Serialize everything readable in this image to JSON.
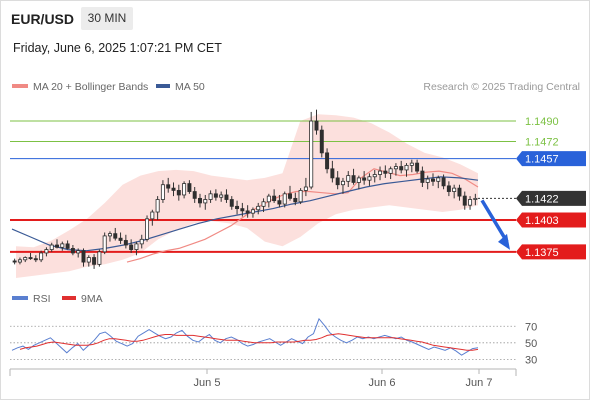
{
  "header": {
    "symbol": "EUR/USD",
    "interval": "30 MIN",
    "timestamp": "Friday, June 6, 2025 1:07:21 PM CET"
  },
  "legend": {
    "ma20": "MA 20 + Bollinger Bands",
    "ma50": "MA 50",
    "ma20_color": "#f08a84",
    "ma50_color": "#3a5a96"
  },
  "credit": "Research © 2025 Trading Central",
  "rsi_legend": {
    "rsi": "RSI",
    "ma9": "9MA",
    "rsi_color": "#5a7fd0",
    "ma9_color": "#e03030"
  },
  "chart_data": {
    "type": "candlestick",
    "instrument": "EUR/USD",
    "timeframe": "30 MIN",
    "x_ticks": [
      "Jun 5",
      "Jun 6",
      "Jun 7"
    ],
    "price_range": [
      1.1352,
      1.1512
    ],
    "candles_ohlc": [
      [
        1.1367,
        1.1369,
        1.1364,
        1.1366
      ],
      [
        1.1366,
        1.137,
        1.1364,
        1.1368
      ],
      [
        1.1368,
        1.1371,
        1.1366,
        1.137
      ],
      [
        1.137,
        1.1374,
        1.1368,
        1.1369
      ],
      [
        1.1369,
        1.1372,
        1.1366,
        1.1368
      ],
      [
        1.1368,
        1.1376,
        1.1366,
        1.1374
      ],
      [
        1.1374,
        1.1379,
        1.1371,
        1.1377
      ],
      [
        1.1377,
        1.1383,
        1.1375,
        1.1381
      ],
      [
        1.1381,
        1.1386,
        1.1378,
        1.1379
      ],
      [
        1.1379,
        1.1384,
        1.1376,
        1.1382
      ],
      [
        1.1382,
        1.1385,
        1.1377,
        1.1378
      ],
      [
        1.1378,
        1.1381,
        1.1372,
        1.1374
      ],
      [
        1.1374,
        1.1378,
        1.137,
        1.1376
      ],
      [
        1.1376,
        1.1378,
        1.1362,
        1.1366
      ],
      [
        1.1366,
        1.1372,
        1.1362,
        1.137
      ],
      [
        1.137,
        1.1373,
        1.136,
        1.1364
      ],
      [
        1.1364,
        1.1377,
        1.1362,
        1.1375
      ],
      [
        1.1375,
        1.1392,
        1.1373,
        1.1389
      ],
      [
        1.1389,
        1.1393,
        1.1384,
        1.1391
      ],
      [
        1.1391,
        1.1396,
        1.1385,
        1.1387
      ],
      [
        1.1387,
        1.1392,
        1.1382,
        1.1385
      ],
      [
        1.1385,
        1.139,
        1.1378,
        1.1381
      ],
      [
        1.1381,
        1.1386,
        1.1374,
        1.1377
      ],
      [
        1.1377,
        1.1384,
        1.1372,
        1.1382
      ],
      [
        1.1382,
        1.139,
        1.1378,
        1.1386
      ],
      [
        1.1386,
        1.1407,
        1.1384,
        1.1404
      ],
      [
        1.1404,
        1.1412,
        1.1398,
        1.141
      ],
      [
        1.141,
        1.1424,
        1.1403,
        1.1421
      ],
      [
        1.1421,
        1.1438,
        1.1418,
        1.1434
      ],
      [
        1.1434,
        1.144,
        1.1427,
        1.1431
      ],
      [
        1.1431,
        1.1436,
        1.1424,
        1.1429
      ],
      [
        1.1429,
        1.1434,
        1.142,
        1.1425
      ],
      [
        1.1425,
        1.1437,
        1.1422,
        1.1435
      ],
      [
        1.1435,
        1.1438,
        1.1426,
        1.1428
      ],
      [
        1.1428,
        1.1432,
        1.1418,
        1.1422
      ],
      [
        1.1422,
        1.1426,
        1.1414,
        1.1418
      ],
      [
        1.1418,
        1.1425,
        1.1412,
        1.1421
      ],
      [
        1.1421,
        1.1429,
        1.1418,
        1.1426
      ],
      [
        1.1426,
        1.143,
        1.142,
        1.1423
      ],
      [
        1.1423,
        1.1428,
        1.1419,
        1.1425
      ],
      [
        1.1425,
        1.143,
        1.1418,
        1.1421
      ],
      [
        1.1421,
        1.1424,
        1.1412,
        1.1415
      ],
      [
        1.1415,
        1.142,
        1.1408,
        1.1413
      ],
      [
        1.1413,
        1.1418,
        1.1406,
        1.1411
      ],
      [
        1.1411,
        1.1416,
        1.1405,
        1.1409
      ],
      [
        1.1409,
        1.1414,
        1.1405,
        1.1412
      ],
      [
        1.1412,
        1.1418,
        1.1408,
        1.1415
      ],
      [
        1.1415,
        1.1422,
        1.141,
        1.1419
      ],
      [
        1.1419,
        1.1426,
        1.1414,
        1.1424
      ],
      [
        1.1424,
        1.143,
        1.1418,
        1.142
      ],
      [
        1.142,
        1.1425,
        1.1414,
        1.1417
      ],
      [
        1.1417,
        1.1428,
        1.1414,
        1.1426
      ],
      [
        1.1426,
        1.1433,
        1.142,
        1.1422
      ],
      [
        1.1422,
        1.1427,
        1.1416,
        1.1419
      ],
      [
        1.1419,
        1.1431,
        1.1417,
        1.1429
      ],
      [
        1.1429,
        1.144,
        1.1424,
        1.1432
      ],
      [
        1.1432,
        1.1498,
        1.143,
        1.149
      ],
      [
        1.149,
        1.15,
        1.1478,
        1.1482
      ],
      [
        1.1482,
        1.1486,
        1.1458,
        1.1462
      ],
      [
        1.1462,
        1.1466,
        1.1444,
        1.1448
      ],
      [
        1.1448,
        1.1455,
        1.1436,
        1.144
      ],
      [
        1.144,
        1.1446,
        1.143,
        1.1434
      ],
      [
        1.1434,
        1.144,
        1.1426,
        1.1437
      ],
      [
        1.1437,
        1.1446,
        1.1432,
        1.1442
      ],
      [
        1.1442,
        1.1448,
        1.1434,
        1.1436
      ],
      [
        1.1436,
        1.1442,
        1.143,
        1.144
      ],
      [
        1.144,
        1.1446,
        1.1434,
        1.1438
      ],
      [
        1.1438,
        1.1444,
        1.1433,
        1.1441
      ],
      [
        1.1441,
        1.1447,
        1.1436,
        1.1443
      ],
      [
        1.1443,
        1.145,
        1.1438,
        1.1446
      ],
      [
        1.1446,
        1.1451,
        1.144,
        1.1444
      ],
      [
        1.1444,
        1.145,
        1.1439,
        1.1448
      ],
      [
        1.1448,
        1.1453,
        1.1442,
        1.145
      ],
      [
        1.145,
        1.1455,
        1.1444,
        1.1447
      ],
      [
        1.1447,
        1.1453,
        1.1441,
        1.1451
      ],
      [
        1.1451,
        1.1456,
        1.1445,
        1.1453
      ],
      [
        1.1453,
        1.1456,
        1.1444,
        1.1446
      ],
      [
        1.1446,
        1.145,
        1.1432,
        1.1436
      ],
      [
        1.1436,
        1.1442,
        1.143,
        1.1439
      ],
      [
        1.1439,
        1.1444,
        1.1433,
        1.1437
      ],
      [
        1.1437,
        1.1442,
        1.1431,
        1.144
      ],
      [
        1.144,
        1.1443,
        1.143,
        1.1433
      ],
      [
        1.1433,
        1.1437,
        1.1424,
        1.1428
      ],
      [
        1.1428,
        1.1434,
        1.1422,
        1.1431
      ],
      [
        1.1431,
        1.1434,
        1.142,
        1.1424
      ],
      [
        1.1424,
        1.1428,
        1.1412,
        1.1416
      ],
      [
        1.1416,
        1.1424,
        1.1412,
        1.1421
      ],
      [
        1.1421,
        1.1426,
        1.1416,
        1.1422
      ]
    ],
    "ma20": {
      "name": "MA 20 + Bollinger Bands",
      "color": "#f08a84",
      "values": [
        1.1366,
        1.1369,
        1.1373,
        1.1376,
        1.1378,
        1.1382,
        1.1386,
        1.1392,
        1.1398,
        1.1406,
        1.1414,
        1.142,
        1.1425,
        1.1428,
        1.1428,
        1.1427,
        1.1426,
        1.1427,
        1.144,
        1.1448,
        1.1445,
        1.1442,
        1.1443,
        1.1445,
        1.1446,
        1.1444,
        1.1439,
        1.1432
      ]
    },
    "ma50": {
      "name": "MA 50",
      "color": "#3a5a96",
      "values": [
        1.1395,
        1.1388,
        1.1381,
        1.1377,
        1.1376,
        1.1378,
        1.1381,
        1.1385,
        1.139,
        1.1395,
        1.14,
        1.1404,
        1.1407,
        1.141,
        1.1413,
        1.1417,
        1.142,
        1.1424,
        1.1428,
        1.1432,
        1.1435,
        1.1437,
        1.1439,
        1.1441,
        1.144,
        1.1438
      ]
    },
    "bollinger_band": {
      "upper": [
        1.138,
        1.1379,
        1.1385,
        1.1394,
        1.1404,
        1.1418,
        1.1434,
        1.1442,
        1.1446,
        1.1447,
        1.1446,
        1.1442,
        1.144,
        1.1438,
        1.144,
        1.1444,
        1.149,
        1.1496,
        1.1495,
        1.1493,
        1.1488,
        1.148,
        1.147,
        1.1462,
        1.1458,
        1.1452,
        1.1444
      ],
      "lower": [
        1.1352,
        1.1354,
        1.1356,
        1.1358,
        1.1362,
        1.1364,
        1.1368,
        1.1374,
        1.1386,
        1.1394,
        1.14,
        1.1402,
        1.14,
        1.1396,
        1.1384,
        1.138,
        1.1388,
        1.14,
        1.1408,
        1.1412,
        1.1414,
        1.1416,
        1.1414,
        1.1412,
        1.141,
        1.1412,
        1.1416
      ]
    },
    "levels": [
      {
        "label": "1.1490",
        "value": 1.149,
        "color": "#7cc144",
        "style": "thin",
        "badge": false
      },
      {
        "label": "1.1472",
        "value": 1.1472,
        "color": "#7cc144",
        "style": "thin",
        "badge": false
      },
      {
        "label": "1.1457",
        "value": 1.1457,
        "color": "#2962d9",
        "style": "thin",
        "badge": true
      },
      {
        "label": "1.1422",
        "value": 1.1422,
        "color": "#333333",
        "style": "dotted",
        "badge": true
      },
      {
        "label": "1.1403",
        "value": 1.1403,
        "color": "#e31c1c",
        "style": "thick",
        "badge": true
      },
      {
        "label": "1.1375",
        "value": 1.1375,
        "color": "#e31c1c",
        "style": "thick",
        "badge": true
      }
    ],
    "forecast_arrow": {
      "from": 1.1422,
      "to": 1.1375,
      "color": "#2962d9"
    },
    "rsi": {
      "levels": [
        "70",
        "50",
        "30"
      ],
      "range": [
        22,
        86
      ],
      "series": [
        {
          "name": "RSI",
          "color": "#5a7fd0",
          "values": [
            41,
            44,
            46,
            42,
            47,
            50,
            53,
            56,
            50,
            44,
            38,
            44,
            49,
            41,
            47,
            53,
            61,
            63,
            58,
            52,
            49,
            46,
            49,
            58,
            62,
            66,
            62,
            58,
            55,
            57,
            62,
            65,
            58,
            53,
            51,
            56,
            60,
            53,
            50,
            55,
            57,
            54,
            49,
            46,
            48,
            51,
            53,
            55,
            51,
            47,
            51,
            55,
            52,
            49,
            57,
            61,
            79,
            71,
            62,
            57,
            53,
            50,
            53,
            57,
            55,
            57,
            55,
            57,
            59,
            57,
            55,
            57,
            53,
            51,
            48,
            45,
            42,
            45,
            43,
            41,
            44,
            40,
            35,
            39,
            43,
            44
          ]
        },
        {
          "name": "9MA",
          "color": "#e03030",
          "values": [
            42,
            44,
            45,
            46,
            48,
            50,
            51,
            50,
            49,
            48,
            47,
            47,
            47,
            48,
            50,
            53,
            55,
            55,
            54,
            53,
            52,
            52,
            53,
            55,
            57,
            59,
            60,
            60,
            59,
            59,
            59,
            59,
            58,
            57,
            56,
            55,
            54,
            53,
            53,
            53,
            52,
            51,
            50,
            50,
            50,
            50,
            51,
            51,
            51,
            51,
            52,
            53,
            53,
            54,
            56,
            59,
            60,
            61,
            60,
            59,
            58,
            57,
            56,
            56,
            56,
            56,
            56,
            56,
            55,
            54,
            53,
            52,
            51,
            49,
            47,
            46,
            45,
            44,
            43,
            42,
            41,
            41,
            42
          ]
        }
      ]
    }
  }
}
